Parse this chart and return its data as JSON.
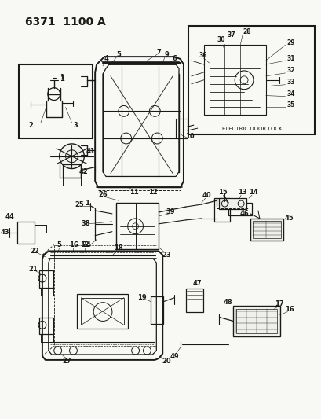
{
  "title": "6371  1100 A",
  "background_color": "#f5f5f0",
  "line_color": "#1a1a1a",
  "fig_width": 4.1,
  "fig_height": 5.33,
  "dpi": 100,
  "title_fontsize": 10,
  "label_fontsize": 6.0,
  "electric_door_lock_label": "ELECTRIC DOOR LOCK"
}
